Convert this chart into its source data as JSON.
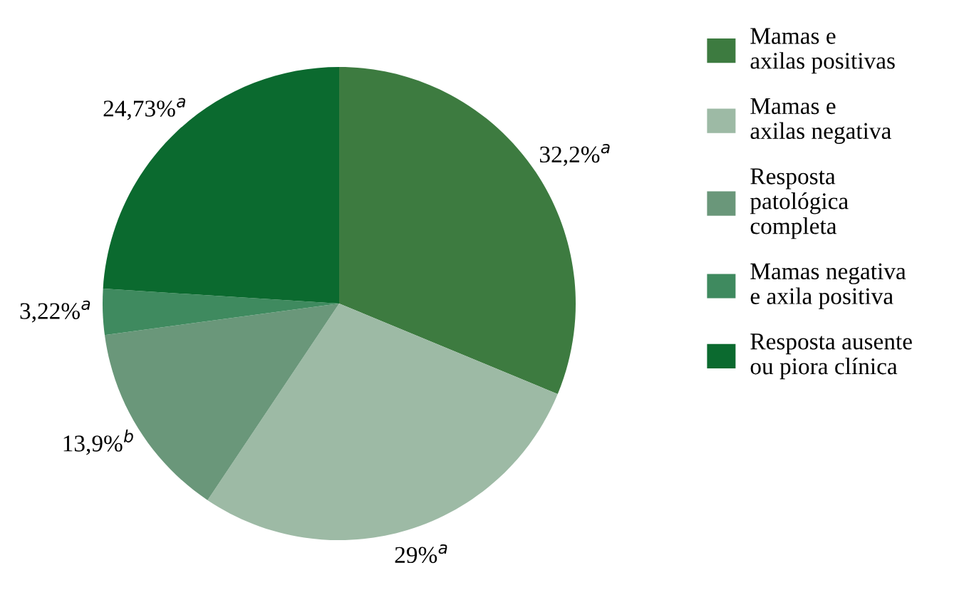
{
  "chart_data": {
    "type": "pie",
    "categories": [
      "Mamas e\naxilas positivas",
      "Mamas e\naxilas negativa",
      "Resposta\npatológica\ncompleta",
      "Mamas negativa\ne axila positiva",
      "Resposta ausente\nou piora clínica"
    ],
    "values": [
      32.2,
      29,
      13.9,
      3.22,
      24.73
    ],
    "value_labels": [
      "32,2%$^{a}$",
      "29%$^{a}$",
      "13,9%$^{b}$",
      "3,22%$^{a}$",
      "24,73%$^{a}$"
    ],
    "colors": [
      "#3d7b40",
      "#9dbaa5",
      "#6a977a",
      "#3f8a5f",
      "#0b6a2f"
    ],
    "legend": "right"
  }
}
